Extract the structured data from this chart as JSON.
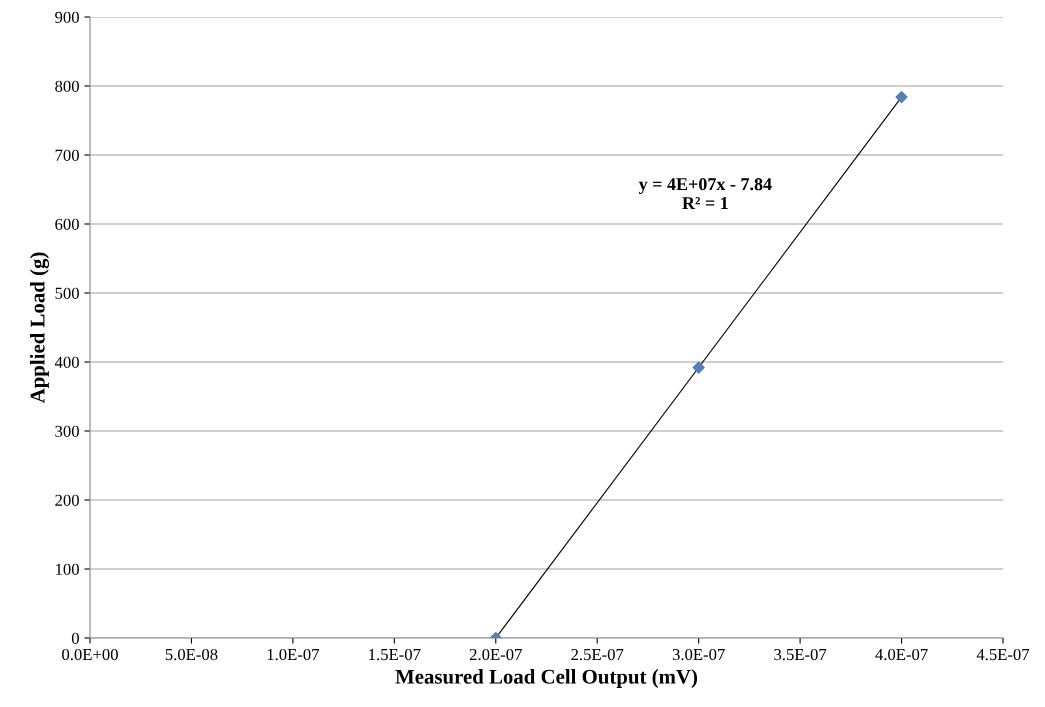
{
  "chart_data": {
    "type": "scatter",
    "xlabel": "Measured Load Cell Output (mV)",
    "ylabel": "Applied Load (g)",
    "x": [
      2e-07,
      3e-07,
      4e-07
    ],
    "series": [
      {
        "color": "#4f81bd",
        "marker": "diamond",
        "values": [
          0,
          392,
          784
        ]
      },
      {
        "type": "line",
        "color": "#000000",
        "marker": "none",
        "line_style": "solid",
        "x": [
          2e-07,
          4e-07
        ],
        "values": [
          0,
          784
        ]
      }
    ],
    "annotations": [
      "y = 4E+07x - 7.84\nR² = 1"
    ],
    "xlim": [
      0,
      4.5e-07
    ],
    "xticks": [
      {
        "value": 0,
        "label": "0.0E+00"
      },
      {
        "value": 5e-08,
        "label": "5.0E-08"
      },
      {
        "value": 1e-07,
        "label": "1.0E-07"
      },
      {
        "value": 1.5e-07,
        "label": "1.5E-07"
      },
      {
        "value": 2e-07,
        "label": "2.0E-07"
      },
      {
        "value": 2.5e-07,
        "label": "2.5E-07"
      },
      {
        "value": 3e-07,
        "label": "3.0E-07"
      },
      {
        "value": 3.5e-07,
        "label": "3.5E-07"
      },
      {
        "value": 4e-07,
        "label": "4.0E-07"
      },
      {
        "value": 4.5e-07,
        "label": "4.5E-07"
      }
    ],
    "ylim": [
      0,
      900
    ],
    "yticks": [
      0,
      100,
      200,
      300,
      400,
      500,
      600,
      700,
      800,
      900
    ],
    "grid": "y",
    "legend": false
  }
}
